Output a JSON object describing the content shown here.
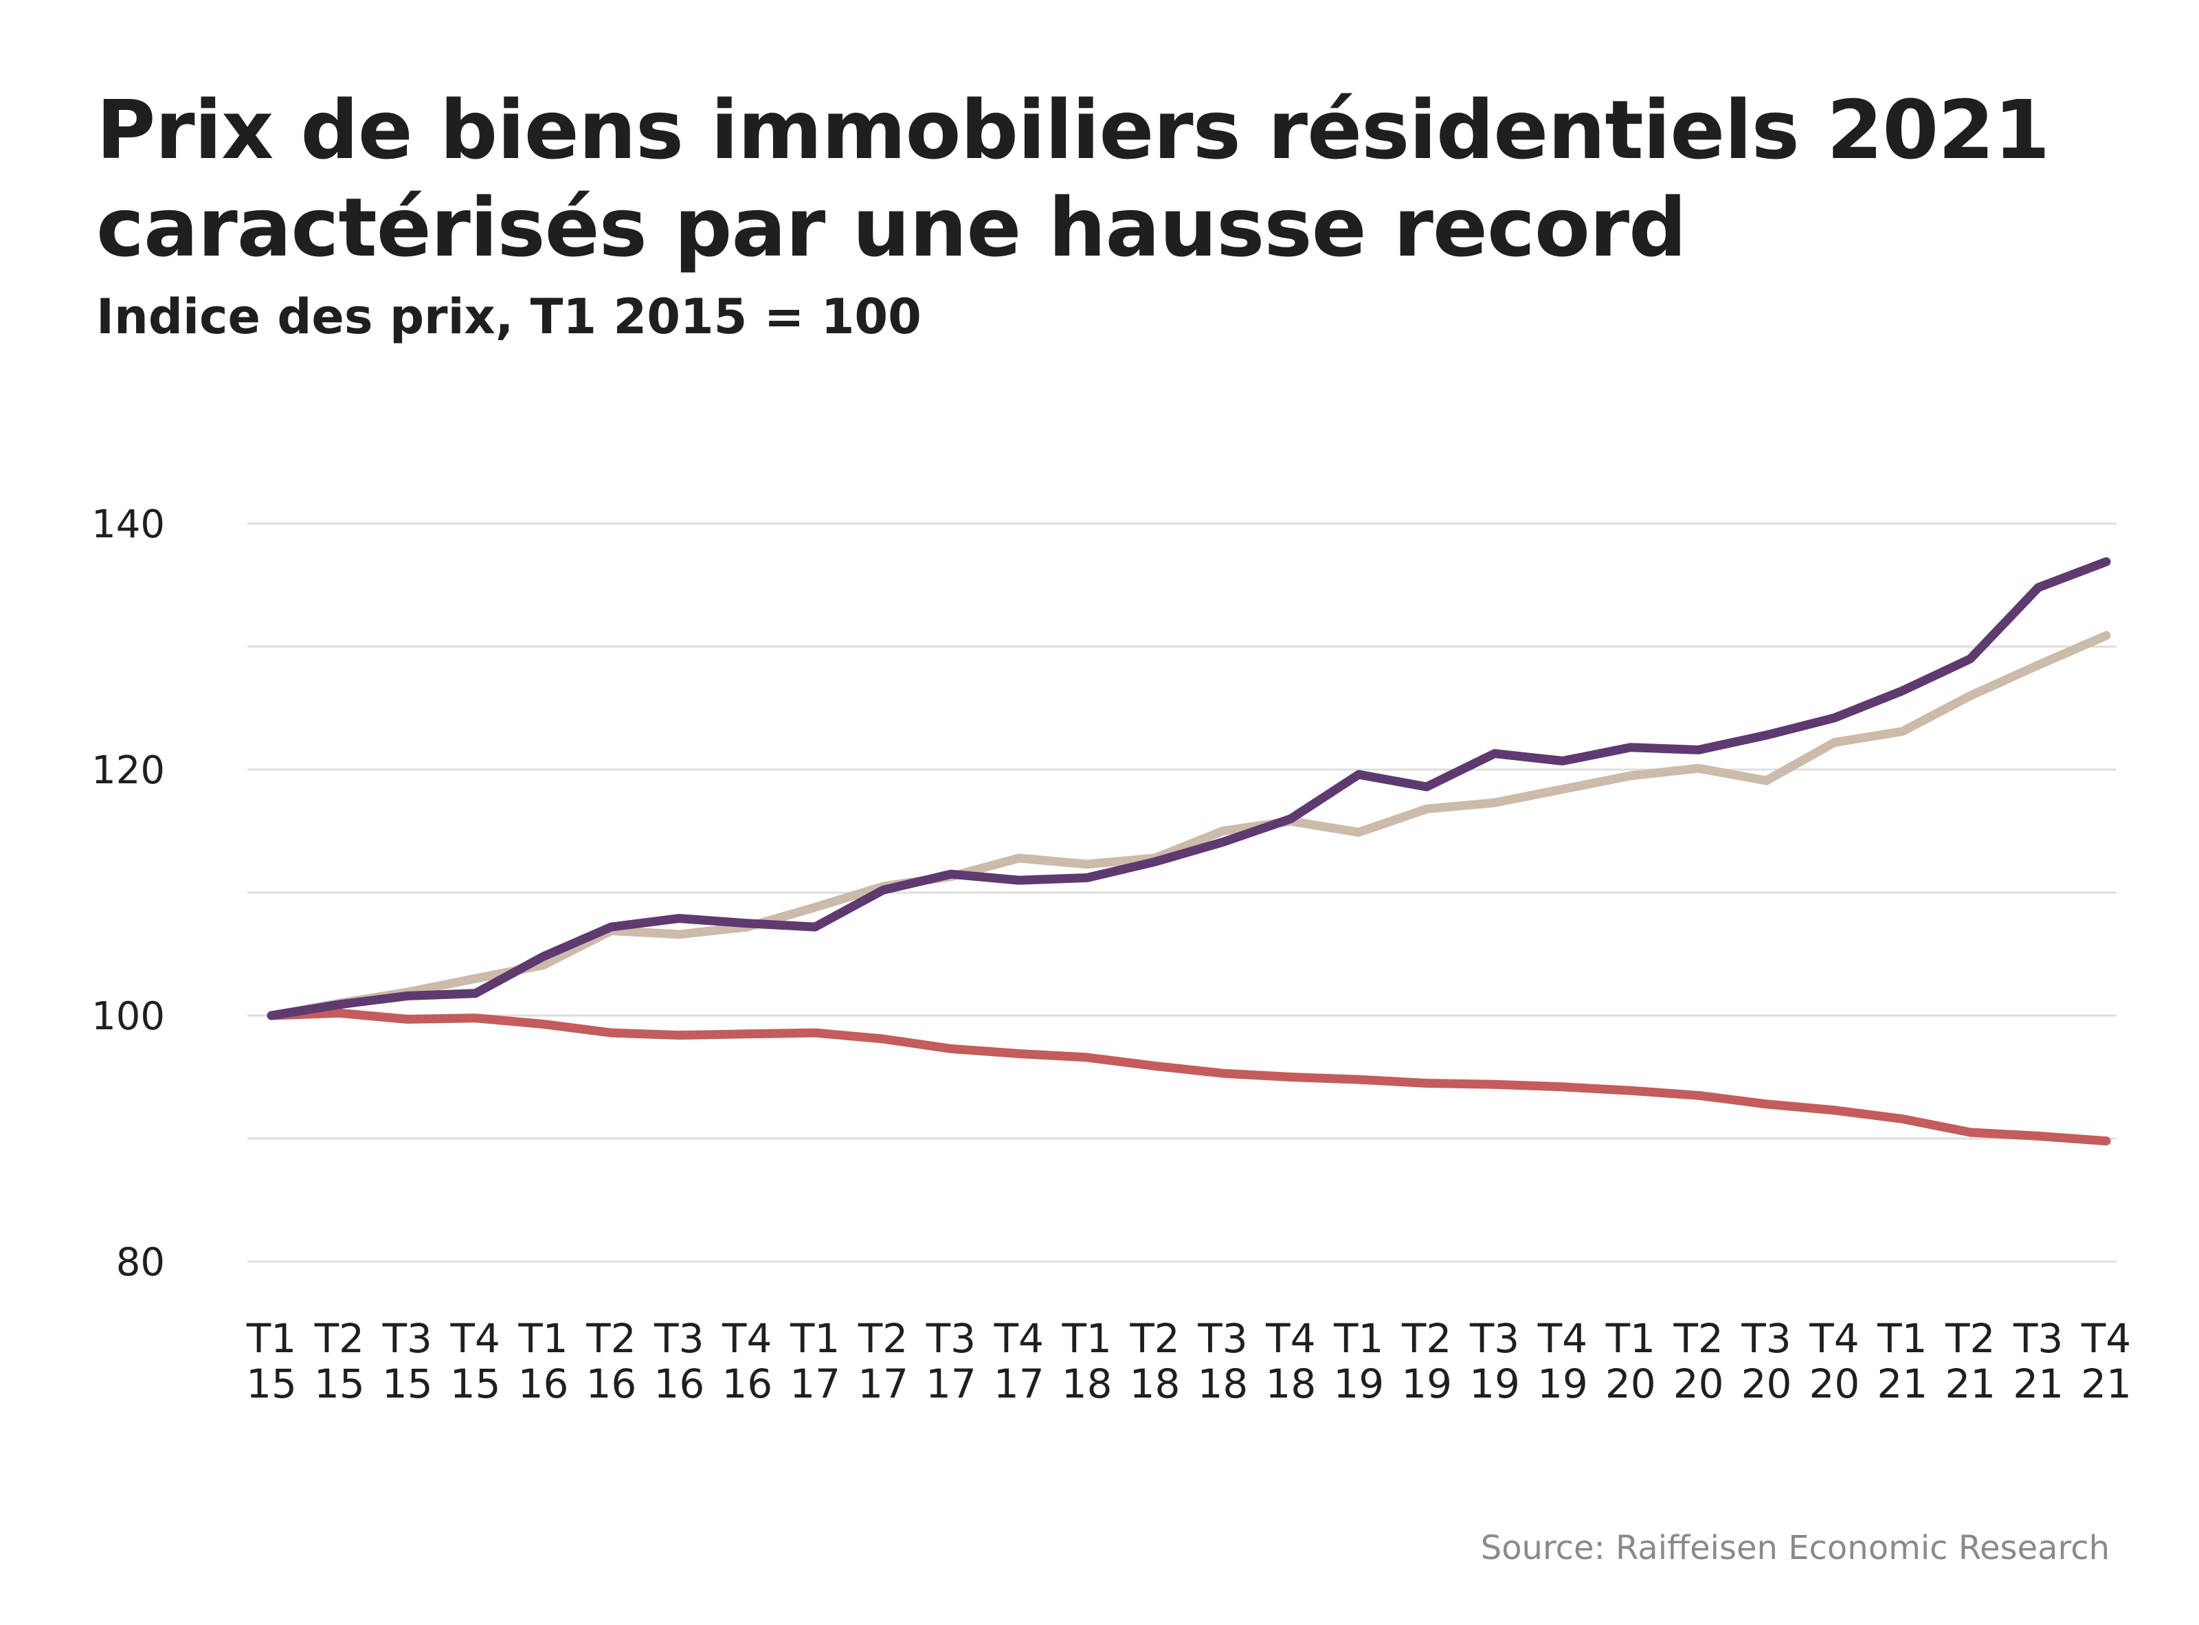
{
  "chart_data": {
    "type": "line",
    "title": "Prix de biens immobiliers résidentiels 2021 caractérisés par une hausse record",
    "subtitle": "Indice des prix, T1 2015 = 100",
    "source": "Source: Raiffeisen Economic Research",
    "ylim": [
      80,
      140
    ],
    "yticks": [
      80,
      100,
      120,
      140
    ],
    "grid": true,
    "categories": [
      [
        "T1",
        "15"
      ],
      [
        "T2",
        "15"
      ],
      [
        "T3",
        "15"
      ],
      [
        "T4",
        "15"
      ],
      [
        "T1",
        "16"
      ],
      [
        "T2",
        "16"
      ],
      [
        "T3",
        "16"
      ],
      [
        "T4",
        "16"
      ],
      [
        "T1",
        "17"
      ],
      [
        "T2",
        "17"
      ],
      [
        "T3",
        "17"
      ],
      [
        "T4",
        "17"
      ],
      [
        "T1",
        "18"
      ],
      [
        "T2",
        "18"
      ],
      [
        "T3",
        "18"
      ],
      [
        "T4",
        "18"
      ],
      [
        "T1",
        "19"
      ],
      [
        "T2",
        "19"
      ],
      [
        "T3",
        "19"
      ],
      [
        "T4",
        "19"
      ],
      [
        "T1",
        "20"
      ],
      [
        "T2",
        "20"
      ],
      [
        "T3",
        "20"
      ],
      [
        "T4",
        "20"
      ],
      [
        "T1",
        "21"
      ],
      [
        "T2",
        "21"
      ],
      [
        "T3",
        "21"
      ],
      [
        "T4",
        "21"
      ]
    ],
    "series": [
      {
        "color": "#ccbbaa",
        "values": [
          100,
          101,
          101.9,
          103,
          104.1,
          106.9,
          106.6,
          107.2,
          108.8,
          110.5,
          111.3,
          112.8,
          112.3,
          112.8,
          115,
          115.8,
          114.9,
          116.8,
          117.3,
          118.4,
          119.5,
          120.1,
          119.1,
          122.2,
          123.1,
          126,
          128.5,
          130.9
        ]
      },
      {
        "color": "#c45c5c",
        "values": [
          100,
          100.2,
          99.7,
          99.8,
          99.3,
          98.6,
          98.4,
          98.5,
          98.6,
          98.1,
          97.3,
          96.9,
          96.6,
          95.9,
          95.3,
          95,
          94.8,
          94.5,
          94.4,
          94.2,
          93.9,
          93.5,
          92.8,
          92.3,
          91.6,
          90.5,
          90.2,
          89.8
        ]
      },
      {
        "color": "#5e3a70",
        "values": [
          100,
          100.9,
          101.6,
          101.8,
          104.8,
          107.2,
          107.9,
          107.5,
          107.2,
          110.2,
          111.5,
          111,
          111.2,
          112.5,
          114.1,
          116,
          119.6,
          118.6,
          121.3,
          120.7,
          121.8,
          121.6,
          122.8,
          124.2,
          126.4,
          129,
          134.8,
          136.9
        ]
      }
    ]
  }
}
